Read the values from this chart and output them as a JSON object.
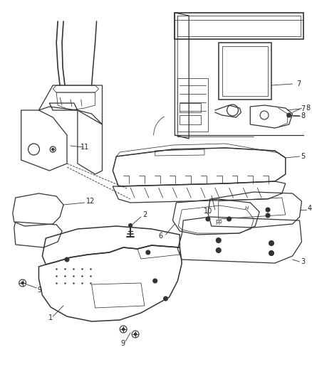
{
  "bg_color": "#ffffff",
  "line_color": "#333333",
  "lw": 0.9,
  "lw_thin": 0.55,
  "fs": 7.0,
  "figsize": [
    4.38,
    5.33
  ],
  "dpi": 100
}
